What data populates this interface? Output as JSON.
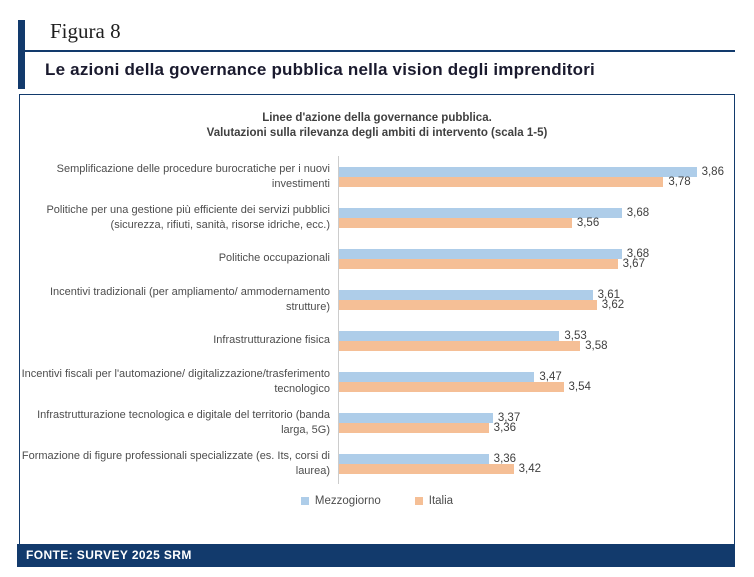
{
  "header": {
    "figure_label": "Figura 8",
    "title": "Le azioni della governance pubblica nella vision degli imprenditori"
  },
  "footer": {
    "source": "FONTE: SURVEY 2025 SRM"
  },
  "colors": {
    "navy_accent": "#123a6c",
    "mezzogiorno_bar": "#aecde9",
    "italia_bar": "#f5bf96"
  },
  "chart_data": {
    "type": "bar",
    "orientation": "horizontal",
    "title_lines": [
      "Linee d'azione della governance pubblica.",
      "Valutazioni sulla rilevanza degli ambiti di intervento (scala 1-5)"
    ],
    "categories": [
      "Semplificazione delle procedure burocratiche per i nuovi investimenti",
      "Politiche per una gestione più efficiente dei servizi pubblici (sicurezza, rifiuti, sanità, risorse idriche, ecc.)",
      "Politiche occupazionali",
      "Incentivi tradizionali (per ampliamento/ ammodernamento strutture)",
      "Infrastrutturazione fisica",
      "Incentivi fiscali per l'automazione/ digitalizzazione/trasferimento tecnologico",
      "Infrastrutturazione tecnologica e digitale del territorio (banda larga, 5G)",
      "Formazione di figure professionali specializzate (es. Its, corsi di laurea)"
    ],
    "series": [
      {
        "name": "Mezzogiorno",
        "color": "#aecde9",
        "values": [
          3.86,
          3.68,
          3.68,
          3.61,
          3.53,
          3.47,
          3.37,
          3.36
        ]
      },
      {
        "name": "Italia",
        "color": "#f5bf96",
        "values": [
          3.78,
          3.56,
          3.67,
          3.62,
          3.58,
          3.54,
          3.36,
          3.42
        ]
      }
    ],
    "value_labels_format": "comma-decimal",
    "axis": {
      "min": 3.0,
      "max": 3.95,
      "gridlines": false
    },
    "legend_position": "bottom"
  }
}
